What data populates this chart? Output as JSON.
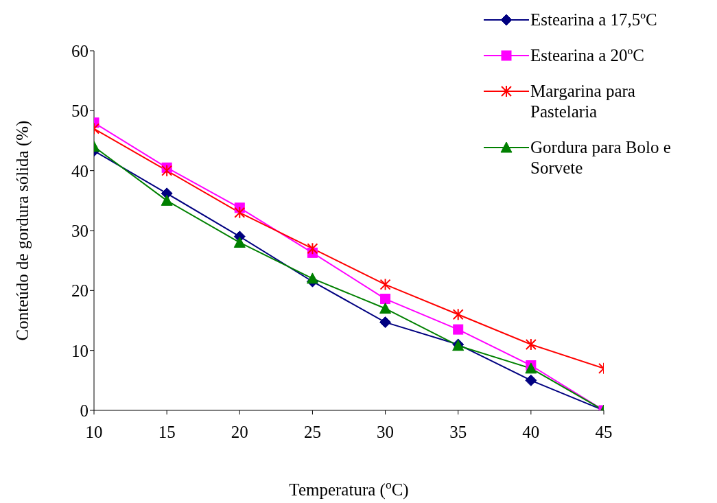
{
  "chart_data": {
    "type": "line",
    "xlabel": "Temperatura ($^{o}$C)",
    "ylabel": "Conteúdo de gordura sólida (%)",
    "x": [
      10,
      15,
      20,
      25,
      30,
      35,
      40,
      45
    ],
    "xlim": [
      10,
      45
    ],
    "xticks": [
      10,
      15,
      20,
      25,
      30,
      35,
      40,
      45
    ],
    "ylim": [
      0,
      60
    ],
    "yticks": [
      0,
      10,
      20,
      30,
      40,
      50,
      60
    ],
    "grid": false,
    "legend": "top right",
    "line_style": "solid",
    "series": [
      {
        "name": "Estearina a 17,5ºC",
        "color": "#000080",
        "marker": "diamond",
        "values": [
          43.3,
          36.2,
          29,
          21.5,
          14.7,
          11,
          5,
          0
        ]
      },
      {
        "name": "Estearina a 20ºC",
        "color": "#ff00ff",
        "marker": "square",
        "values": [
          48,
          40.5,
          33.8,
          26.3,
          18.6,
          13.5,
          7.5,
          0
        ]
      },
      {
        "name": "Margarina para Pastelaria",
        "color": "#ff0000",
        "marker": "cross",
        "values": [
          47,
          40,
          33,
          27,
          21,
          16,
          11,
          7
        ]
      },
      {
        "name": "Gordura para Bolo e Sorvete",
        "color": "#008000",
        "marker": "triangle",
        "values": [
          44,
          35,
          28,
          22,
          17,
          10.8,
          7,
          0
        ]
      }
    ]
  }
}
